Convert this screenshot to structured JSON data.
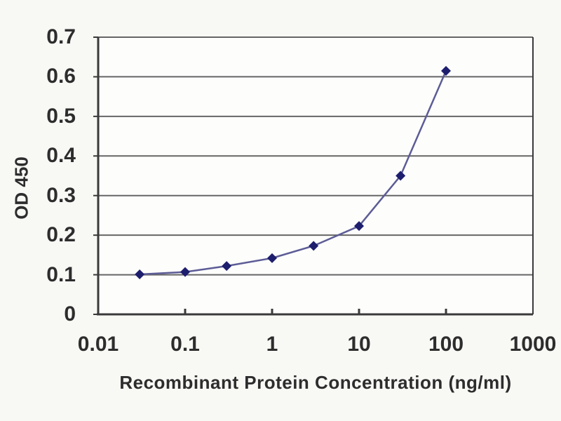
{
  "chart": {
    "y_axis_title": "OD 450",
    "x_axis_title": "Recombinant Protein Concentration (ng/ml)"
  },
  "chart_data": {
    "type": "line",
    "title": "",
    "xlabel": "Recombinant Protein Concentration (ng/ml)",
    "ylabel": "OD 450",
    "x_scale": "log",
    "xlim": [
      0.01,
      1000
    ],
    "ylim": [
      0,
      0.7
    ],
    "x_ticks": [
      0.01,
      0.1,
      1,
      10,
      100,
      1000
    ],
    "x_tick_labels": [
      "0.01",
      "0.1",
      "1",
      "10",
      "100",
      "1000"
    ],
    "y_ticks": [
      0,
      0.1,
      0.2,
      0.3,
      0.4,
      0.5,
      0.6,
      0.7
    ],
    "y_tick_labels": [
      "0",
      "0.1",
      "0.2",
      "0.3",
      "0.4",
      "0.5",
      "0.6",
      "0.7"
    ],
    "grid": "horizontal",
    "legend": "none",
    "marker": "diamond",
    "series": [
      {
        "name": "OD 450",
        "x": [
          0.03,
          0.1,
          0.3,
          1,
          3,
          10,
          30,
          100
        ],
        "y": [
          0.101,
          0.107,
          0.122,
          0.142,
          0.173,
          0.223,
          0.35,
          0.615
        ]
      }
    ],
    "colors": {
      "line": "#5c5c96",
      "marker": "#1e1e6e",
      "gridline": "#666666",
      "axis": "#3a3a3a",
      "text": "#2d2d2d",
      "plot_background": "#fdfdfc",
      "page_background": "#f8f8f5"
    }
  }
}
